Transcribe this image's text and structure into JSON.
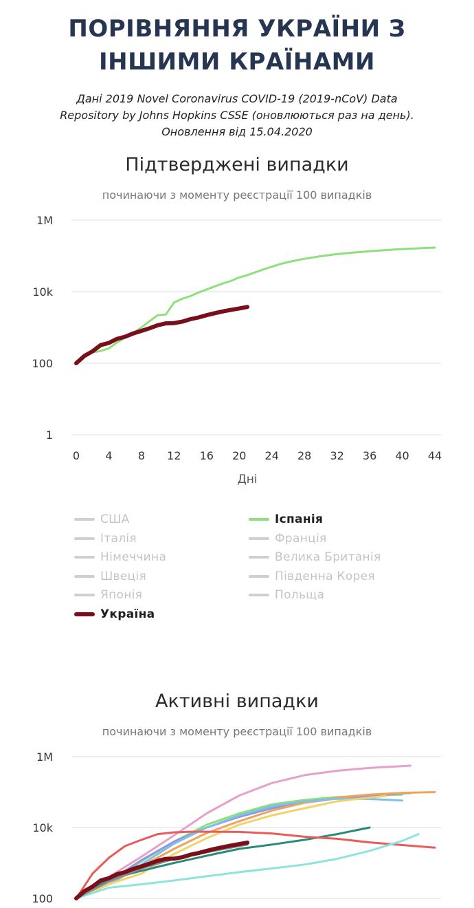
{
  "header": {
    "title_line1": "ПОРІВНЯННЯ УКРАЇНИ З",
    "title_line2": "ІНШИМИ КРАЇНАМИ",
    "source_line1": "Дані 2019 Novel Coronavirus COVID-19 (2019-nCoV) Data",
    "source_line2": "Repository by Johns Hopkins CSSE (оновлюються раз на день).",
    "source_line3": "Оновлення від 15.04.2020"
  },
  "legend": {
    "items": [
      {
        "label": "США",
        "color": "#cfcfcf",
        "active": false
      },
      {
        "label": "Іспанія",
        "color": "#8ee07a",
        "active": true
      },
      {
        "label": "Італія",
        "color": "#cfcfcf",
        "active": false
      },
      {
        "label": "Франція",
        "color": "#cfcfcf",
        "active": false
      },
      {
        "label": "Німеччина",
        "color": "#cfcfcf",
        "active": false
      },
      {
        "label": "Велика Британія",
        "color": "#cfcfcf",
        "active": false
      },
      {
        "label": "Швеція",
        "color": "#cfcfcf",
        "active": false
      },
      {
        "label": "Південна Корея",
        "color": "#cfcfcf",
        "active": false
      },
      {
        "label": "Японія",
        "color": "#cfcfcf",
        "active": false
      },
      {
        "label": "Польща",
        "color": "#cfcfcf",
        "active": false
      },
      {
        "label": "Україна",
        "color": "#7a0f1c",
        "active": true
      }
    ]
  },
  "chart_data": [
    {
      "type": "line",
      "title": "Підтверджені випадки",
      "subtitle": "починаючи з моменту реєстрації 100 випадків",
      "xlabel": "Дні",
      "ylabel": "",
      "x_ticks": [
        0,
        4,
        8,
        12,
        16,
        20,
        24,
        28,
        32,
        36,
        40,
        44
      ],
      "y_ticks": [
        1,
        100,
        10000,
        1000000
      ],
      "y_tick_labels": [
        "1",
        "100",
        "10k",
        "1M"
      ],
      "y_scale": "log",
      "xlim": [
        0,
        44
      ],
      "ylim": [
        1,
        1000000
      ],
      "grid": true,
      "series": [
        {
          "name": "Іспанія",
          "color": "#8ee07a",
          "width": 3,
          "x": [
            0,
            1,
            2,
            3,
            4,
            5,
            6,
            7,
            8,
            9,
            10,
            11,
            12,
            13,
            14,
            15,
            16,
            17,
            18,
            19,
            20,
            21,
            22,
            23,
            24,
            25,
            26,
            27,
            28,
            29,
            30,
            31,
            32,
            33,
            34,
            35,
            36,
            37,
            38,
            39,
            40,
            41,
            42,
            43,
            44
          ],
          "y": [
            100,
            150,
            200,
            220,
            260,
            380,
            520,
            700,
            1000,
            1500,
            2200,
            2300,
            5000,
            6300,
            7500,
            9500,
            11500,
            14000,
            17000,
            20000,
            25000,
            29000,
            35000,
            42000,
            50000,
            59000,
            67000,
            75000,
            83000,
            90000,
            98000,
            105000,
            112000,
            118000,
            124000,
            129000,
            135000,
            140000,
            145000,
            150000,
            155000,
            159000,
            163000,
            167000,
            170000
          ]
        },
        {
          "name": "Україна",
          "color": "#7a0f1c",
          "width": 6,
          "x": [
            0,
            1,
            2,
            3,
            4,
            5,
            6,
            7,
            8,
            9,
            10,
            11,
            12,
            13,
            14,
            15,
            16,
            17,
            18,
            19,
            20,
            21
          ],
          "y": [
            100,
            160,
            215,
            320,
            370,
            480,
            550,
            680,
            800,
            950,
            1150,
            1300,
            1320,
            1450,
            1700,
            1900,
            2200,
            2500,
            2800,
            3100,
            3400,
            3750
          ]
        }
      ]
    },
    {
      "type": "line",
      "title": "Активні випадки",
      "subtitle": "починаючи з моменту реєстрації 100 випадків",
      "y_ticks": [
        100,
        10000,
        1000000
      ],
      "y_tick_labels": [
        "100",
        "10k",
        "1M"
      ],
      "y_scale": "log",
      "xlim": [
        0,
        44
      ],
      "ylim": [
        100,
        1000000
      ],
      "grid": true,
      "series": [
        {
          "name": "США",
          "color": "#e8a0c8",
          "width": 3,
          "x": [
            0,
            4,
            8,
            12,
            16,
            20,
            24,
            28,
            32,
            36,
            40,
            41
          ],
          "y": [
            100,
            400,
            1500,
            6000,
            25000,
            80000,
            180000,
            300000,
            400000,
            480000,
            540000,
            560000
          ]
        },
        {
          "name": "Іспанія",
          "color": "#8ee07a",
          "width": 3,
          "x": [
            0,
            4,
            8,
            12,
            16,
            20,
            24,
            28,
            32,
            36,
            40
          ],
          "y": [
            100,
            300,
            1100,
            4000,
            12000,
            25000,
            45000,
            60000,
            72000,
            80000,
            85000
          ]
        },
        {
          "name": "Італія",
          "color": "#8e96e6",
          "width": 3,
          "x": [
            0,
            4,
            8,
            12,
            16,
            20,
            24,
            28,
            32,
            36,
            40,
            41
          ],
          "y": [
            100,
            300,
            1200,
            4000,
            10000,
            20000,
            35000,
            50000,
            66000,
            78000,
            92000,
            94000
          ]
        },
        {
          "name": "Франція",
          "color": "#f1a35c",
          "width": 3,
          "x": [
            0,
            4,
            8,
            12,
            16,
            20,
            24,
            28,
            32,
            36,
            40,
            44
          ],
          "y": [
            100,
            250,
            800,
            2500,
            7000,
            15000,
            30000,
            50000,
            70000,
            85000,
            95000,
            100000
          ]
        },
        {
          "name": "Німеччина",
          "color": "#80c0e8",
          "width": 3,
          "x": [
            0,
            4,
            8,
            12,
            16,
            20,
            24,
            28,
            32,
            36,
            40
          ],
          "y": [
            100,
            250,
            900,
            3500,
            10000,
            22000,
            40000,
            55000,
            65000,
            64000,
            58000
          ]
        },
        {
          "name": "Велика Британія",
          "color": "#efd46a",
          "width": 3,
          "x": [
            0,
            4,
            8,
            12,
            16,
            20,
            24,
            28,
            32,
            36,
            38
          ],
          "y": [
            100,
            250,
            500,
            1800,
            5000,
            12000,
            22000,
            35000,
            55000,
            70000,
            78000
          ]
        },
        {
          "name": "Швеція",
          "color": "#2a8a78",
          "width": 3,
          "x": [
            0,
            4,
            8,
            12,
            16,
            20,
            24,
            28,
            32,
            36
          ],
          "y": [
            100,
            350,
            600,
            1000,
            1600,
            2500,
            3300,
            4500,
            6500,
            10000
          ]
        },
        {
          "name": "Південна Корея",
          "color": "#e85c5c",
          "width": 3,
          "x": [
            0,
            2,
            4,
            6,
            8,
            10,
            12,
            14,
            16,
            20,
            24,
            28,
            32,
            36,
            40,
            44
          ],
          "y": [
            100,
            500,
            1400,
            3000,
            4500,
            6500,
            7300,
            7600,
            7600,
            7500,
            6800,
            5500,
            4800,
            3800,
            3200,
            2700
          ]
        },
        {
          "name": "Японія",
          "color": "#8ee4dc",
          "width": 3,
          "x": [
            0,
            4,
            8,
            12,
            16,
            20,
            24,
            28,
            32,
            36,
            40,
            42
          ],
          "y": [
            100,
            200,
            250,
            320,
            420,
            550,
            700,
            900,
            1300,
            2200,
            4200,
            6500
          ]
        },
        {
          "name": "Польща",
          "color": "#8a8a8a",
          "width": 3,
          "x": [
            0,
            4,
            8,
            12,
            16,
            20,
            21
          ],
          "y": [
            100,
            300,
            700,
            1300,
            2000,
            3000,
            3300
          ]
        },
        {
          "name": "Україна",
          "color": "#7a0f1c",
          "width": 6,
          "x": [
            0,
            1,
            2,
            3,
            4,
            5,
            6,
            7,
            8,
            9,
            10,
            11,
            12,
            13,
            14,
            15,
            16,
            17,
            18,
            19,
            20,
            21
          ],
          "y": [
            100,
            160,
            215,
            320,
            370,
            480,
            550,
            680,
            800,
            950,
            1150,
            1300,
            1320,
            1450,
            1700,
            1900,
            2200,
            2500,
            2800,
            3100,
            3400,
            3750
          ]
        }
      ]
    }
  ]
}
